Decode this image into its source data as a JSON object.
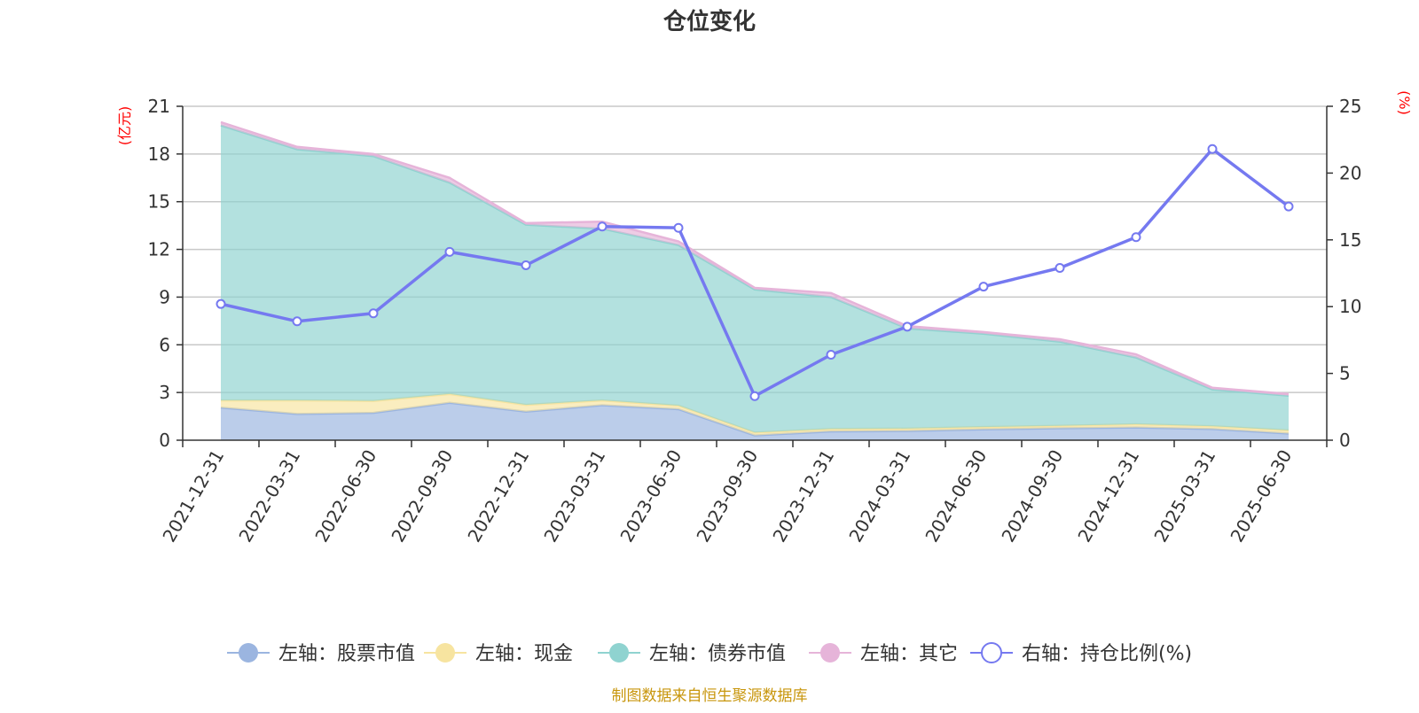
{
  "chart_data": {
    "type": "area",
    "title": "仓位变化",
    "left_axis_unit": "(亿元)",
    "right_axis_unit": "(%)",
    "x": [
      "2021-12-31",
      "2022-03-31",
      "2022-06-30",
      "2022-09-30",
      "2022-12-31",
      "2023-03-31",
      "2023-06-30",
      "2023-09-30",
      "2023-12-31",
      "2024-03-31",
      "2024-06-30",
      "2024-09-30",
      "2024-12-31",
      "2025-03-31",
      "2025-06-30"
    ],
    "y_left": {
      "min": 0,
      "max": 21,
      "ticks": [
        0,
        3,
        6,
        9,
        12,
        15,
        18,
        21
      ]
    },
    "y_right": {
      "min": 0,
      "max": 25,
      "ticks": [
        0,
        5,
        10,
        15,
        20,
        25
      ]
    },
    "grid": true,
    "legend_position": "bottom",
    "series": [
      {
        "name": "左轴：股票市值",
        "axis": "left",
        "stack": true,
        "color": "#9bb5e0",
        "values": [
          2.05,
          1.65,
          1.72,
          2.35,
          1.8,
          2.2,
          1.95,
          0.3,
          0.55,
          0.58,
          0.68,
          0.75,
          0.8,
          0.7,
          0.42
        ]
      },
      {
        "name": "左轴：现金",
        "axis": "left",
        "stack": true,
        "color": "#f7e4a0",
        "values": [
          0.45,
          0.85,
          0.75,
          0.55,
          0.42,
          0.3,
          0.22,
          0.18,
          0.15,
          0.15,
          0.15,
          0.15,
          0.2,
          0.18,
          0.2
        ]
      },
      {
        "name": "左轴：债券市值",
        "axis": "left",
        "stack": true,
        "color": "#8fd3d0",
        "values": [
          17.3,
          15.8,
          15.4,
          13.3,
          11.33,
          10.8,
          10.1,
          9.0,
          8.3,
          6.3,
          5.87,
          5.3,
          4.2,
          2.32,
          2.18
        ]
      },
      {
        "name": "左轴：其它",
        "axis": "left",
        "stack": true,
        "color": "#e6b4d9",
        "values": [
          0.2,
          0.15,
          0.13,
          0.3,
          0.1,
          0.45,
          0.23,
          0.1,
          0.25,
          0.15,
          0.1,
          0.15,
          0.2,
          0.1,
          0.1
        ]
      },
      {
        "name": "右轴：持仓比例(%)",
        "axis": "right",
        "type": "line",
        "color": "#7579f0",
        "values": [
          10.2,
          8.9,
          9.5,
          14.1,
          13.1,
          16.0,
          15.9,
          3.3,
          6.4,
          8.5,
          11.5,
          12.9,
          15.2,
          21.8,
          17.5
        ]
      }
    ]
  },
  "footer": {
    "source": "制图数据来自恒生聚源数据库"
  }
}
